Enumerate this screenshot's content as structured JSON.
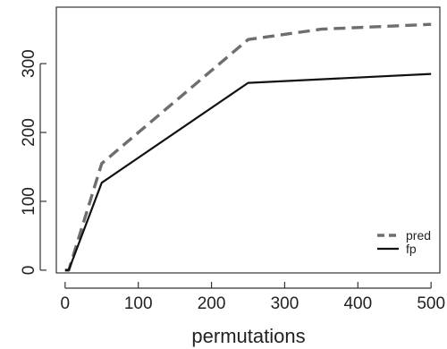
{
  "chart_data": {
    "type": "line",
    "title": "",
    "xlabel": "permutations",
    "ylabel": "",
    "xlim": [
      -12,
      512
    ],
    "ylim": [
      -4,
      382
    ],
    "xticks": [
      0,
      100,
      200,
      300,
      400,
      500
    ],
    "yticks": [
      0,
      100,
      200,
      300
    ],
    "grid": false,
    "legend_position": "bottom-right",
    "series": [
      {
        "name": "pred",
        "style": "dashed",
        "color": "#6e6e6e",
        "x": [
          0,
          5,
          50,
          250,
          350,
          500
        ],
        "y": [
          0,
          0,
          155,
          335,
          350,
          357
        ]
      },
      {
        "name": "fp",
        "style": "solid",
        "color": "#111111",
        "x": [
          0,
          5,
          50,
          250,
          500
        ],
        "y": [
          0,
          0,
          127,
          272,
          285
        ]
      }
    ]
  }
}
